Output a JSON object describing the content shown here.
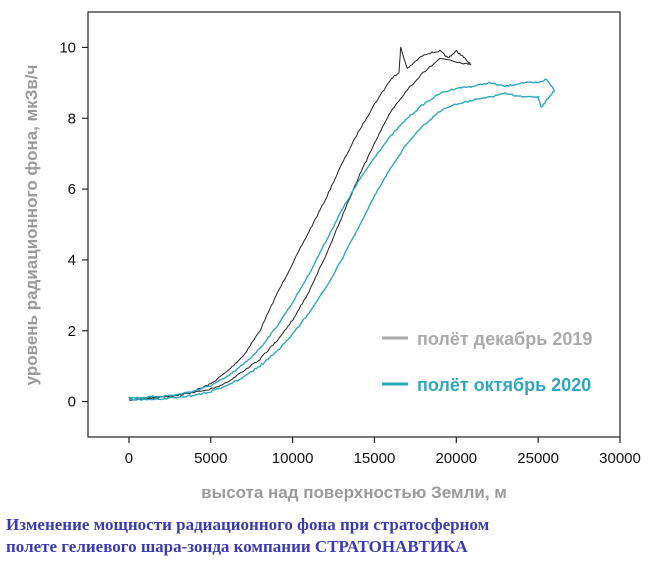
{
  "chart_data": {
    "type": "line",
    "title": "",
    "xlabel": "высота над поверхностью Земли, м",
    "ylabel": "уровень радиационного фона, мкЗв/ч",
    "xlim": [
      -2500,
      30000
    ],
    "ylim": [
      -1,
      11
    ],
    "xticks": [
      0,
      5000,
      10000,
      15000,
      20000,
      25000,
      30000
    ],
    "yticks": [
      0,
      2,
      4,
      6,
      8,
      10
    ],
    "grid": false,
    "legend_position": "right",
    "series": [
      {
        "name": "полёт декабрь 2019",
        "color": "#222222",
        "legend_color": "#aaaaaa",
        "segments": [
          {
            "x": [
              0,
              1000,
              2000,
              3000,
              4000,
              5000,
              6000,
              7000,
              8000,
              9000,
              10000,
              11000,
              12000,
              13000,
              14000,
              15000,
              16000,
              16500,
              16600,
              17000,
              18000,
              19000,
              19500,
              20000,
              20500,
              20900
            ],
            "y": [
              0.1,
              0.1,
              0.15,
              0.2,
              0.3,
              0.5,
              0.85,
              1.3,
              2.0,
              3.0,
              3.9,
              4.8,
              5.7,
              6.7,
              7.6,
              8.4,
              9.1,
              9.3,
              10.0,
              9.4,
              9.8,
              9.9,
              9.7,
              9.9,
              9.7,
              9.5
            ]
          },
          {
            "x": [
              20900,
              20000,
              19000,
              18000,
              17000,
              16000,
              15000,
              14000,
              13000,
              12000,
              11000,
              10000,
              9000,
              8000,
              7000,
              6000,
              5000,
              4000,
              3000,
              2000,
              1000,
              0
            ],
            "y": [
              9.5,
              9.6,
              9.7,
              9.3,
              8.8,
              8.2,
              7.3,
              6.3,
              5.2,
              4.1,
              3.1,
              2.3,
              1.7,
              1.2,
              0.85,
              0.55,
              0.35,
              0.25,
              0.18,
              0.12,
              0.08,
              0.05
            ]
          }
        ]
      },
      {
        "name": "полёт октябрь 2020",
        "color": "#2fa8bf",
        "legend_color": "#2fa8bf",
        "segments": [
          {
            "x": [
              0,
              1000,
              2000,
              3000,
              4000,
              5000,
              6000,
              7000,
              8000,
              9000,
              10000,
              11000,
              12000,
              13000,
              14000,
              15000,
              16000,
              17000,
              18000,
              19000,
              20000,
              21000,
              22000,
              23000,
              24000,
              25000,
              25500,
              26000
            ],
            "y": [
              0.1,
              0.12,
              0.15,
              0.2,
              0.3,
              0.45,
              0.7,
              1.05,
              1.5,
              2.1,
              2.8,
              3.6,
              4.5,
              5.4,
              6.2,
              6.9,
              7.5,
              8.0,
              8.4,
              8.7,
              8.85,
              8.9,
              9.0,
              8.9,
              9.0,
              9.0,
              9.1,
              8.8
            ]
          },
          {
            "x": [
              26000,
              25500,
              25200,
              25000,
              24000,
              23000,
              22000,
              21000,
              20000,
              19000,
              18000,
              17000,
              16000,
              15000,
              14000,
              13000,
              12000,
              11000,
              10000,
              9000,
              8000,
              7000,
              6000,
              5000,
              4000,
              3000,
              2000,
              1000,
              0
            ],
            "y": [
              8.8,
              8.5,
              8.3,
              8.6,
              8.6,
              8.7,
              8.6,
              8.5,
              8.4,
              8.2,
              7.8,
              7.3,
              6.6,
              5.8,
              4.9,
              4.0,
              3.2,
              2.5,
              1.9,
              1.4,
              1.0,
              0.7,
              0.45,
              0.28,
              0.18,
              0.12,
              0.08,
              0.06,
              0.05
            ]
          }
        ]
      }
    ]
  },
  "caption": {
    "line1": "Изменение мощности радиационного фона при стратосферном",
    "line2": "полете гелиевого шара-зонда компании СТРАТОНАВТИКА"
  }
}
